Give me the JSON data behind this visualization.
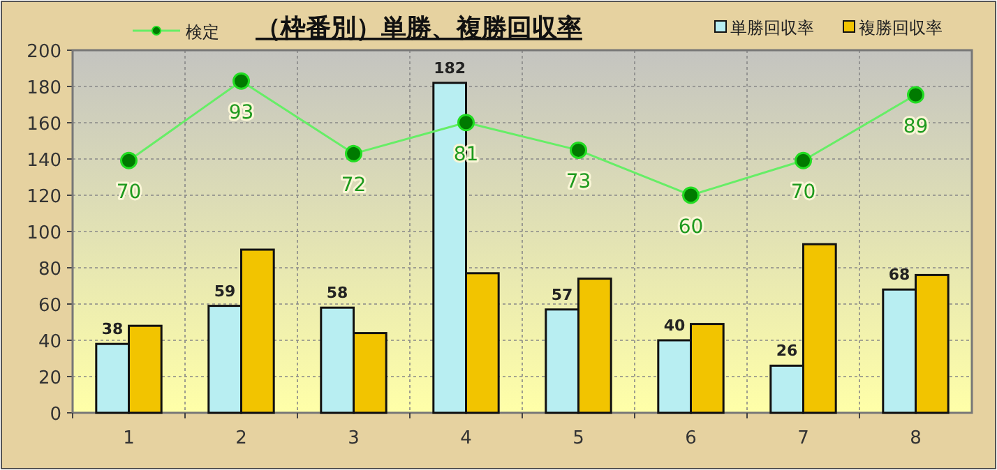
{
  "chart_data": {
    "type": "bar",
    "title": "（枠番別）単勝、複勝回収率",
    "categories": [
      "1",
      "2",
      "3",
      "4",
      "5",
      "6",
      "7",
      "8"
    ],
    "ylim": [
      0,
      200
    ],
    "yticks": [
      0,
      20,
      40,
      60,
      80,
      100,
      120,
      140,
      160,
      180,
      200
    ],
    "y2lim": [
      -2.9,
      101.9
    ],
    "grid": true,
    "legend": "top",
    "marker": "circle",
    "line_style": "solid",
    "series": [
      {
        "name": "検定",
        "type": "line",
        "axis": "y2",
        "color": "#66ee66",
        "values": [
          70,
          93,
          72,
          81,
          73,
          60,
          70,
          89
        ],
        "value_labels": [
          "70",
          "93",
          "72",
          "81",
          "73",
          "60",
          "70",
          "89"
        ]
      },
      {
        "name": "単勝回収率",
        "color": "#b8eef2",
        "values": [
          38,
          59,
          58,
          182,
          57,
          40,
          26,
          68
        ],
        "value_labels": [
          "38",
          "59",
          "58",
          "182",
          "57",
          "40",
          "26",
          "68"
        ]
      },
      {
        "name": "複勝回収率",
        "color": "#f2c400",
        "values": [
          48,
          90,
          44,
          77,
          74,
          49,
          93,
          76
        ]
      }
    ]
  }
}
